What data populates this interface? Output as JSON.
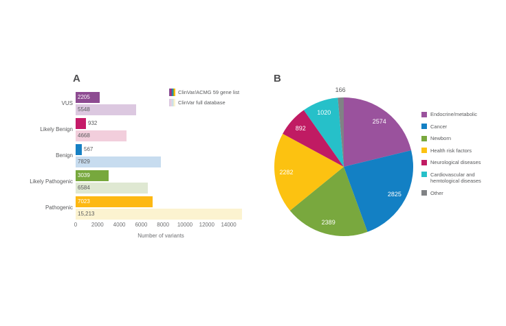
{
  "panels": {
    "a": {
      "label": "A"
    },
    "b": {
      "label": "B"
    }
  },
  "chart_data": [
    {
      "type": "bar",
      "orientation": "horizontal",
      "title": "",
      "categories": [
        "VUS",
        "Likely Benign",
        "Benign",
        "Likely Pathogenic",
        "Pathogenic"
      ],
      "series": [
        {
          "name": "ClinVar/ACMG 59 gene list",
          "values": [
            2205,
            932,
            567,
            3039,
            7023
          ],
          "value_labels": [
            "2205",
            "932",
            "567",
            "3039",
            "7023"
          ],
          "colors": [
            "#8d4b91",
            "#c51a68",
            "#1680c4",
            "#77a83d",
            "#fdb813"
          ]
        },
        {
          "name": "ClinVar full database",
          "values": [
            5548,
            4668,
            7829,
            6584,
            15213
          ],
          "value_labels": [
            "5548",
            "4668",
            "7829",
            "6584",
            "15,213"
          ],
          "colors": [
            "#dcc8e0",
            "#f2cedc",
            "#c7dcef",
            "#dfe8d2",
            "#fcf3d0"
          ]
        }
      ],
      "xlabel": "Number of variants",
      "x_ticks": [
        0,
        2000,
        4000,
        6000,
        8000,
        10000,
        12000,
        14000
      ],
      "xlim": [
        0,
        15600
      ],
      "grid": false,
      "legend_position": "top-right"
    },
    {
      "type": "pie",
      "labels": [
        "Endocrine/metabolic",
        "Cancer",
        "Newborn",
        "Health risk factors",
        "Neurological diseases",
        "Cardiovascular and hemtological diseases",
        "Other"
      ],
      "values": [
        2574,
        2825,
        2389,
        2282,
        892,
        1020,
        166
      ],
      "value_labels": [
        "2574",
        "2825",
        "2389",
        "2282",
        "892",
        "1020",
        "166"
      ],
      "colors": [
        "#9a529d",
        "#1380c4",
        "#79a83e",
        "#fcc211",
        "#c01b63",
        "#26c0c9",
        "#808285"
      ],
      "start_angle_deg": 0,
      "direction": "clockwise",
      "legend_position": "right"
    }
  ]
}
